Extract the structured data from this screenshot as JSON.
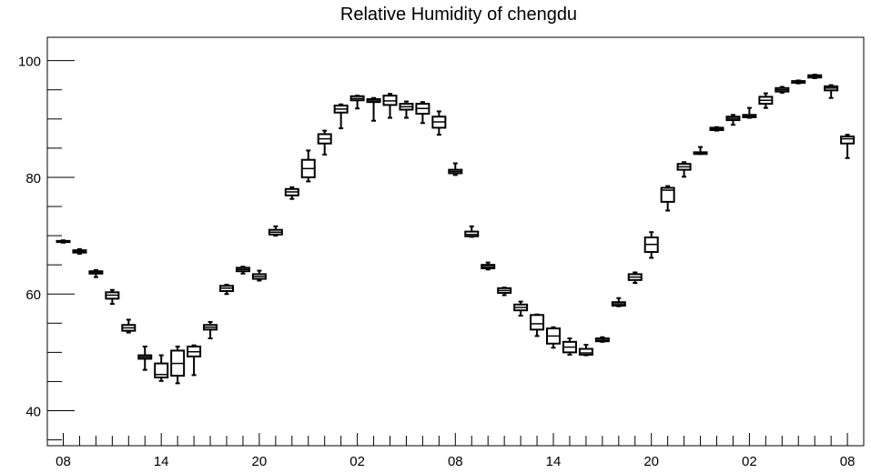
{
  "chart_data": {
    "type": "box",
    "title": "Relative Humidity of chengdu",
    "xlabel": "",
    "ylabel": "",
    "ylim": [
      34,
      104
    ],
    "y_ticks": [
      40,
      60,
      80,
      100
    ],
    "x_ticks": [
      "08",
      "14",
      "20",
      "02",
      "08",
      "14",
      "20",
      "02",
      "08"
    ],
    "x_tick_hours": [
      0,
      6,
      12,
      18,
      24,
      30,
      36,
      42,
      48
    ],
    "grid": false,
    "boxes": [
      {
        "hour": 0,
        "min": 68.8,
        "q1": 68.9,
        "median": 69.0,
        "q3": 69.1,
        "max": 69.2
      },
      {
        "hour": 1,
        "min": 66.9,
        "q1": 67.1,
        "median": 67.3,
        "q3": 67.5,
        "max": 67.7
      },
      {
        "hour": 2,
        "min": 62.9,
        "q1": 63.5,
        "median": 63.7,
        "q3": 63.9,
        "max": 64.1
      },
      {
        "hour": 3,
        "min": 58.3,
        "q1": 59.2,
        "median": 59.8,
        "q3": 60.3,
        "max": 60.7
      },
      {
        "hour": 4,
        "min": 53.4,
        "q1": 53.7,
        "median": 54.2,
        "q3": 54.7,
        "max": 55.6
      },
      {
        "hour": 5,
        "min": 47.0,
        "q1": 48.9,
        "median": 49.2,
        "q3": 49.5,
        "max": 51.0
      },
      {
        "hour": 6,
        "min": 45.1,
        "q1": 45.7,
        "median": 46.2,
        "q3": 48.1,
        "max": 49.5
      },
      {
        "hour": 7,
        "min": 44.7,
        "q1": 46.0,
        "median": 48.1,
        "q3": 50.3,
        "max": 51.0
      },
      {
        "hour": 8,
        "min": 46.1,
        "q1": 49.3,
        "median": 50.1,
        "q3": 51.0,
        "max": 51.2
      },
      {
        "hour": 9,
        "min": 52.4,
        "q1": 53.9,
        "median": 54.3,
        "q3": 54.7,
        "max": 55.2
      },
      {
        "hour": 10,
        "min": 60.0,
        "q1": 60.5,
        "median": 61.0,
        "q3": 61.4,
        "max": 61.6
      },
      {
        "hour": 11,
        "min": 63.5,
        "q1": 63.9,
        "median": 64.2,
        "q3": 64.5,
        "max": 64.7
      },
      {
        "hour": 12,
        "min": 62.3,
        "q1": 62.6,
        "median": 63.0,
        "q3": 63.4,
        "max": 64.0
      },
      {
        "hour": 13,
        "min": 70.0,
        "q1": 70.2,
        "median": 70.6,
        "q3": 71.0,
        "max": 71.6
      },
      {
        "hour": 14,
        "min": 76.3,
        "q1": 76.9,
        "median": 77.5,
        "q3": 78.0,
        "max": 78.3
      },
      {
        "hour": 15,
        "min": 79.3,
        "q1": 80.0,
        "median": 81.5,
        "q3": 83.0,
        "max": 84.6
      },
      {
        "hour": 16,
        "min": 83.9,
        "q1": 85.8,
        "median": 86.6,
        "q3": 87.4,
        "max": 88.0
      },
      {
        "hour": 17,
        "min": 88.4,
        "q1": 91.1,
        "median": 91.7,
        "q3": 92.3,
        "max": 92.5
      },
      {
        "hour": 18,
        "min": 91.8,
        "q1": 93.2,
        "median": 93.5,
        "q3": 93.9,
        "max": 94.0
      },
      {
        "hour": 19,
        "min": 89.7,
        "q1": 92.9,
        "median": 93.1,
        "q3": 93.4,
        "max": 93.6
      },
      {
        "hour": 20,
        "min": 90.2,
        "q1": 92.4,
        "median": 93.1,
        "q3": 94.0,
        "max": 94.3
      },
      {
        "hour": 21,
        "min": 90.2,
        "q1": 91.6,
        "median": 92.1,
        "q3": 92.6,
        "max": 93.0
      },
      {
        "hour": 22,
        "min": 89.3,
        "q1": 90.9,
        "median": 91.8,
        "q3": 92.6,
        "max": 92.9
      },
      {
        "hour": 23,
        "min": 87.3,
        "q1": 88.5,
        "median": 89.5,
        "q3": 90.4,
        "max": 91.3
      },
      {
        "hour": 24,
        "min": 80.4,
        "q1": 80.7,
        "median": 81.0,
        "q3": 81.3,
        "max": 82.4
      },
      {
        "hour": 25,
        "min": 69.8,
        "q1": 69.9,
        "median": 70.2,
        "q3": 70.7,
        "max": 71.6
      },
      {
        "hour": 26,
        "min": 64.2,
        "q1": 64.4,
        "median": 64.7,
        "q3": 65.0,
        "max": 65.4
      },
      {
        "hour": 27,
        "min": 59.8,
        "q1": 60.2,
        "median": 60.6,
        "q3": 61.0,
        "max": 61.1
      },
      {
        "hour": 28,
        "min": 56.3,
        "q1": 57.2,
        "median": 57.7,
        "q3": 58.2,
        "max": 58.7
      },
      {
        "hour": 29,
        "min": 52.8,
        "q1": 53.9,
        "median": 54.9,
        "q3": 56.4,
        "max": 56.5
      },
      {
        "hour": 30,
        "min": 50.8,
        "q1": 51.5,
        "median": 52.8,
        "q3": 54.1,
        "max": 54.3
      },
      {
        "hour": 31,
        "min": 49.6,
        "q1": 50.0,
        "median": 50.9,
        "q3": 51.8,
        "max": 52.4
      },
      {
        "hour": 32,
        "min": 49.5,
        "q1": 49.6,
        "median": 49.9,
        "q3": 50.6,
        "max": 51.3
      },
      {
        "hour": 33,
        "min": 51.8,
        "q1": 51.9,
        "median": 52.1,
        "q3": 52.4,
        "max": 52.6
      },
      {
        "hour": 34,
        "min": 57.9,
        "q1": 58.0,
        "median": 58.3,
        "q3": 58.6,
        "max": 59.3
      },
      {
        "hour": 35,
        "min": 61.9,
        "q1": 62.4,
        "median": 62.9,
        "q3": 63.4,
        "max": 63.7
      },
      {
        "hour": 36,
        "min": 66.2,
        "q1": 67.2,
        "median": 68.5,
        "q3": 69.7,
        "max": 70.6
      },
      {
        "hour": 37,
        "min": 74.3,
        "q1": 75.8,
        "median": 77.8,
        "q3": 78.2,
        "max": 78.5
      },
      {
        "hour": 38,
        "min": 80.1,
        "q1": 81.3,
        "median": 81.8,
        "q3": 82.3,
        "max": 82.6
      },
      {
        "hour": 39,
        "min": 84.0,
        "q1": 84.0,
        "median": 84.1,
        "q3": 84.3,
        "max": 85.2
      },
      {
        "hour": 40,
        "min": 88.0,
        "q1": 88.1,
        "median": 88.3,
        "q3": 88.5,
        "max": 88.6
      },
      {
        "hour": 41,
        "min": 89.0,
        "q1": 89.8,
        "median": 90.1,
        "q3": 90.4,
        "max": 90.7
      },
      {
        "hour": 42,
        "min": 90.2,
        "q1": 90.3,
        "median": 90.5,
        "q3": 90.7,
        "max": 91.9
      },
      {
        "hour": 43,
        "min": 91.9,
        "q1": 92.6,
        "median": 93.2,
        "q3": 93.8,
        "max": 94.4
      },
      {
        "hour": 44,
        "min": 94.5,
        "q1": 94.7,
        "median": 95.0,
        "q3": 95.3,
        "max": 95.5
      },
      {
        "hour": 45,
        "min": 96.1,
        "q1": 96.2,
        "median": 96.4,
        "q3": 96.5,
        "max": 96.6
      },
      {
        "hour": 46,
        "min": 97.0,
        "q1": 97.1,
        "median": 97.3,
        "q3": 97.5,
        "max": 97.6
      },
      {
        "hour": 47,
        "min": 93.6,
        "q1": 94.9,
        "median": 95.3,
        "q3": 95.6,
        "max": 95.8
      },
      {
        "hour": 48,
        "min": 83.3,
        "q1": 85.8,
        "median": 86.6,
        "q3": 87.0,
        "max": 87.3
      }
    ]
  }
}
